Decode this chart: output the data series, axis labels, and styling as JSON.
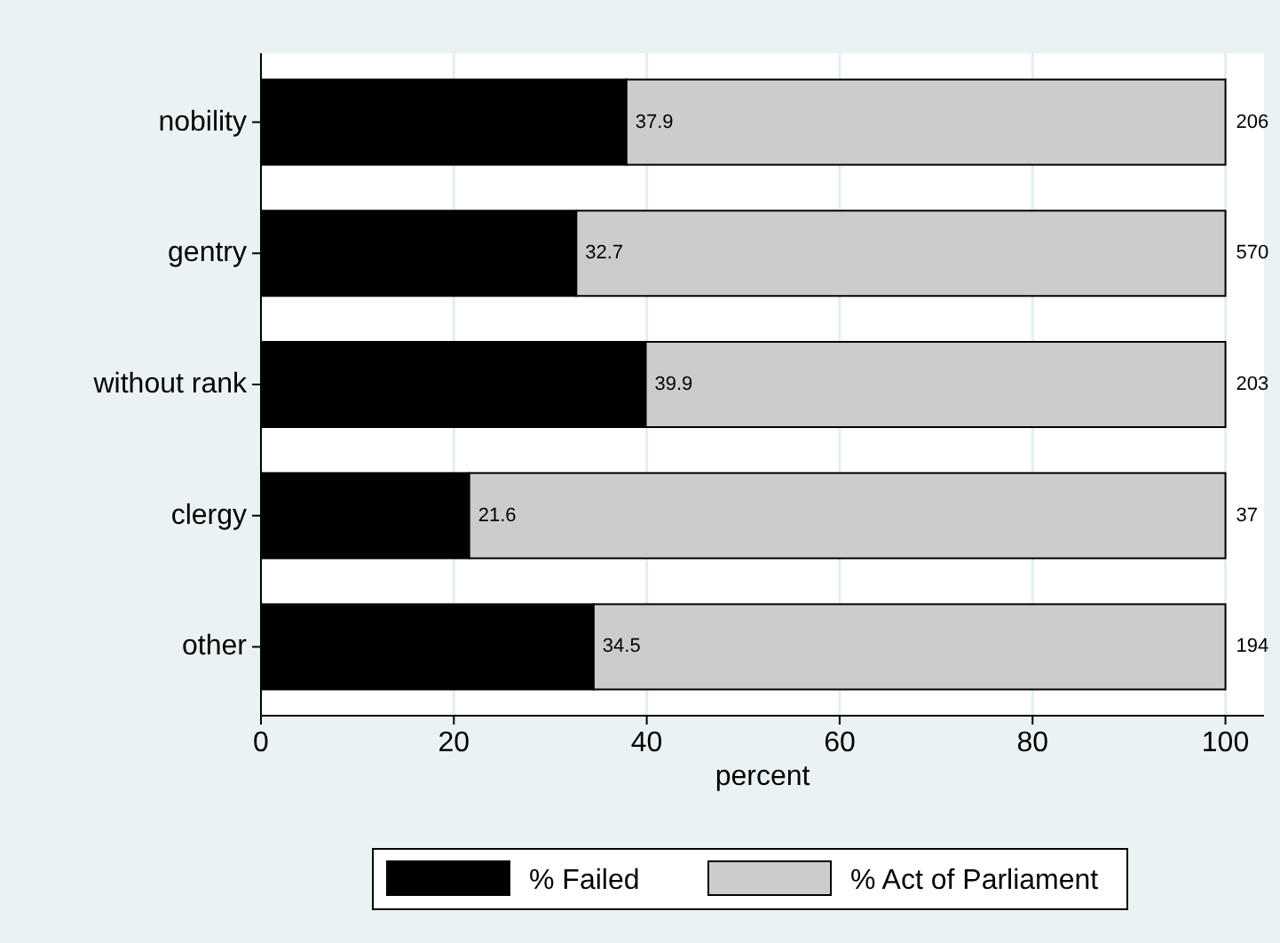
{
  "chart_data": {
    "type": "bar",
    "orientation": "horizontal",
    "stacked": true,
    "categories": [
      "nobility",
      "gentry",
      "without rank",
      "clergy",
      "other"
    ],
    "series": [
      {
        "name": "% Failed",
        "color": "#000000",
        "values": [
          37.9,
          32.7,
          39.9,
          21.6,
          34.5
        ],
        "value_labels": [
          "37.9",
          "32.7",
          "39.9",
          "21.6",
          "34.5"
        ]
      },
      {
        "name": "% Act of Parliament",
        "color": "#cccccc",
        "values": [
          62.1,
          67.3,
          60.1,
          78.4,
          65.5
        ]
      }
    ],
    "xlim": [
      0,
      104
    ],
    "xticks": [
      0,
      20,
      40,
      60,
      80,
      100
    ],
    "xlabel": "percent",
    "grid": "x",
    "legend": "bottom",
    "annotations": [
      "206",
      "570",
      "203",
      "37",
      "194"
    ]
  }
}
